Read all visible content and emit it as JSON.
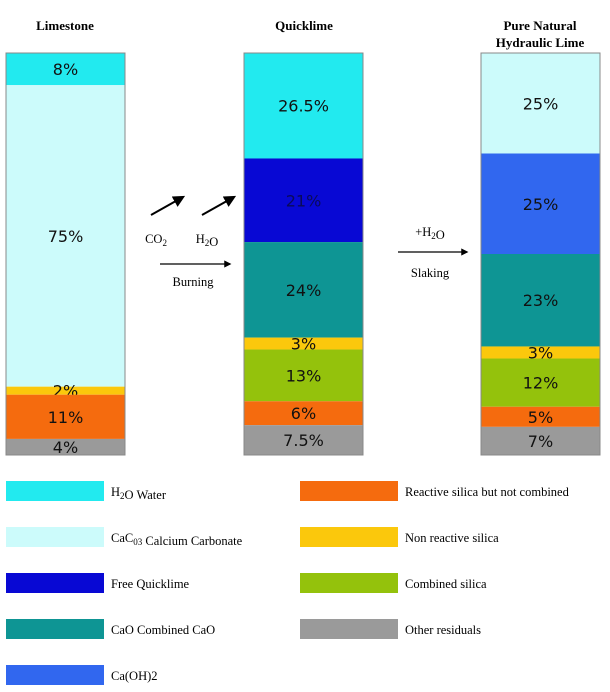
{
  "chart_data": {
    "type": "stacked-bar",
    "unit": "%",
    "columns": [
      {
        "title_lines": [
          "Limestone"
        ],
        "segments": [
          {
            "category": "H2O Water",
            "value": 8,
            "label": "8%"
          },
          {
            "category": "CaC03 Calcium Carbonate",
            "value": 75,
            "label": "75%"
          },
          {
            "category": "Non reactive silica",
            "value": 2,
            "label": "2%"
          },
          {
            "category": "Reactive silica but not combined",
            "value": 11,
            "label": "11%"
          },
          {
            "category": "Other residuals",
            "value": 4,
            "label": "4%"
          }
        ]
      },
      {
        "title_lines": [
          "Quicklime"
        ],
        "segments": [
          {
            "category": "H2O Water",
            "value": 26.5,
            "label": "26.5%"
          },
          {
            "category": "Free Quicklime",
            "value": 21,
            "label": "21%"
          },
          {
            "category": "CaO Combined CaO",
            "value": 24,
            "label": "24%"
          },
          {
            "category": "Non reactive silica",
            "value": 3,
            "label": "3%"
          },
          {
            "category": "Combined silica",
            "value": 13,
            "label": "13%"
          },
          {
            "category": "Reactive silica but not combined",
            "value": 6,
            "label": "6%"
          },
          {
            "category": "Other residuals",
            "value": 7.5,
            "label": "7.5%"
          }
        ]
      },
      {
        "title_lines": [
          "Pure Natural",
          "Hydraulic Lime"
        ],
        "segments": [
          {
            "category": "CaC03 Calcium Carbonate",
            "value": 25,
            "label": "25%"
          },
          {
            "category": "Ca(OH)2",
            "value": 25,
            "label": "25%"
          },
          {
            "category": "CaO Combined CaO",
            "value": 23,
            "label": "23%"
          },
          {
            "category": "Non reactive silica",
            "value": 3,
            "label": "3%"
          },
          {
            "category": "Combined silica",
            "value": 12,
            "label": "12%"
          },
          {
            "category": "Reactive silica but not combined",
            "value": 5,
            "label": "5%"
          },
          {
            "category": "Other residuals",
            "value": 7,
            "label": "7%"
          }
        ]
      }
    ],
    "flows": [
      {
        "top_labels": [
          "CO2",
          "H2O"
        ],
        "bottom_label": "Burning"
      },
      {
        "top_labels": [
          "+H2O"
        ],
        "bottom_label": "Slaking"
      }
    ],
    "legend": [
      {
        "category": "H2O Water",
        "label": "H2O Water",
        "color": "#22eaef"
      },
      {
        "category": "CaC03 Calcium Carbonate",
        "label": "CaC03 Calcium Carbonate",
        "color": "#ccfbfb"
      },
      {
        "category": "Free Quicklime",
        "label": "Free Quicklime",
        "color": "#0808d4"
      },
      {
        "category": "CaO Combined CaO",
        "label": "CaO Combined CaO",
        "color": "#0e9594"
      },
      {
        "category": "Ca(OH)2",
        "label": "Ca(OH)2",
        "color": "#3167ef"
      },
      {
        "category": "Reactive silica but not combined",
        "label": "Reactive silica but not combined",
        "color": "#f56b0e"
      },
      {
        "category": "Non reactive silica",
        "label": "Non reactive silica",
        "color": "#fbc80c"
      },
      {
        "category": "Combined silica",
        "label": "Combined silica",
        "color": "#94c20c"
      },
      {
        "category": "Other residuals",
        "label": "Other residuals",
        "color": "#9a9a9a"
      }
    ]
  }
}
